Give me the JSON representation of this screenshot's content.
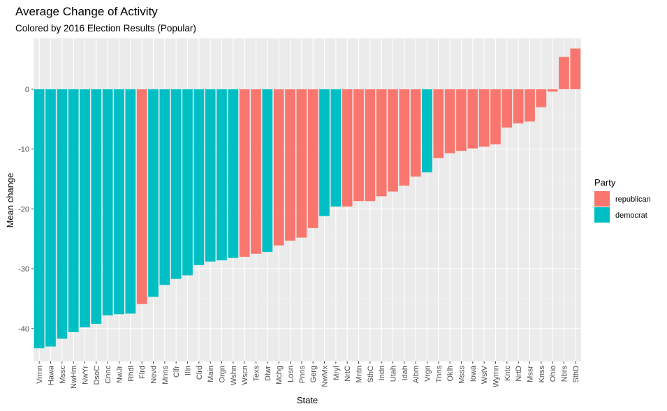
{
  "chart_data": {
    "type": "bar",
    "title": "Average Change of Activity",
    "subtitle": "Colored by 2016 Election Results (Popular)",
    "xlabel": "State",
    "ylabel": "Mean change",
    "ylim": [
      -45.5,
      8.5
    ],
    "yticks": [
      0,
      -10,
      -20,
      -30,
      -40
    ],
    "grid": true,
    "legend": {
      "title": "Party",
      "position": "right",
      "entries": [
        {
          "key": "republican",
          "label": "republican",
          "color": "#F8766D"
        },
        {
          "key": "democrat",
          "label": "democrat",
          "color": "#00BFC4"
        }
      ]
    },
    "categories": [
      "Vrmn",
      "Hawa",
      "Mssc",
      "NwHm",
      "NwYr",
      "DsoC",
      "Cnnc",
      "NwJr",
      "Rhdl",
      "Flrd",
      "Nevd",
      "Mnns",
      "Clfr",
      "Illn",
      "Clrd",
      "Main",
      "Orgn",
      "Wshn",
      "Wscn",
      "Texs",
      "Dlwr",
      "Mchg",
      "Losn",
      "Pnns",
      "Gerg",
      "NwMx",
      "Mryl",
      "NrtC",
      "Mntn",
      "SthC",
      "Indn",
      "Utah",
      "Idah",
      "Albm",
      "Vrgn",
      "Tnns",
      "Oklh",
      "Msss",
      "Iowa",
      "WstV",
      "Wymn",
      "Kntc",
      "NrtD",
      "Mssr",
      "Knss",
      "Ohio",
      "Nbrs",
      "SthD"
    ],
    "values": [
      -43.3,
      -43.0,
      -41.7,
      -40.6,
      -39.8,
      -39.2,
      -37.8,
      -37.6,
      -37.5,
      -35.9,
      -34.7,
      -32.7,
      -31.7,
      -31.1,
      -29.4,
      -28.8,
      -28.6,
      -28.2,
      -28.0,
      -27.5,
      -27.2,
      -26.1,
      -25.3,
      -24.8,
      -23.2,
      -21.2,
      -19.6,
      -19.6,
      -18.7,
      -18.7,
      -17.9,
      -17.1,
      -16.1,
      -14.6,
      -13.9,
      -11.5,
      -10.7,
      -10.3,
      -9.9,
      -9.6,
      -9.2,
      -6.4,
      -5.7,
      -5.4,
      -3.0,
      -0.4,
      5.4,
      6.8
    ],
    "party": [
      "democrat",
      "democrat",
      "democrat",
      "democrat",
      "democrat",
      "democrat",
      "democrat",
      "democrat",
      "democrat",
      "republican",
      "democrat",
      "democrat",
      "democrat",
      "democrat",
      "democrat",
      "democrat",
      "democrat",
      "democrat",
      "republican",
      "republican",
      "democrat",
      "republican",
      "republican",
      "republican",
      "republican",
      "democrat",
      "democrat",
      "republican",
      "republican",
      "republican",
      "republican",
      "republican",
      "republican",
      "republican",
      "democrat",
      "republican",
      "republican",
      "republican",
      "republican",
      "republican",
      "republican",
      "republican",
      "republican",
      "republican",
      "republican",
      "republican",
      "republican",
      "republican"
    ]
  }
}
